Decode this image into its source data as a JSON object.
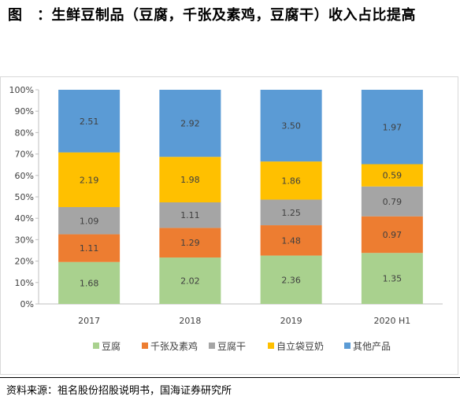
{
  "title": "图　：生鲜豆制品（豆腐，千张及素鸡，豆腐干）收入占比提高",
  "source": "资料来源：祖名股份招股说明书，国海证券研究所",
  "chart_data": {
    "type": "bar",
    "stacked": true,
    "percent_stacked": true,
    "categories": [
      "2017",
      "2018",
      "2019",
      "2020 H1"
    ],
    "series": [
      {
        "name": "豆腐",
        "color": "#a9d18e",
        "values": [
          1.68,
          2.02,
          2.36,
          1.35
        ]
      },
      {
        "name": "千张及素鸡",
        "color": "#ed7d31",
        "values": [
          1.11,
          1.29,
          1.48,
          0.97
        ]
      },
      {
        "name": "豆腐干",
        "color": "#a5a5a5",
        "values": [
          1.09,
          1.11,
          1.25,
          0.79
        ]
      },
      {
        "name": "自立袋豆奶",
        "color": "#ffc000",
        "values": [
          2.19,
          1.98,
          1.86,
          0.59
        ]
      },
      {
        "name": "其他产品",
        "color": "#5b9bd5",
        "values": [
          2.51,
          2.92,
          3.5,
          1.97
        ]
      }
    ],
    "yticks": [
      "0%",
      "10%",
      "20%",
      "30%",
      "40%",
      "50%",
      "60%",
      "70%",
      "80%",
      "90%",
      "100%"
    ],
    "ylim": [
      0,
      100
    ],
    "legend_position": "bottom",
    "grid": false
  }
}
